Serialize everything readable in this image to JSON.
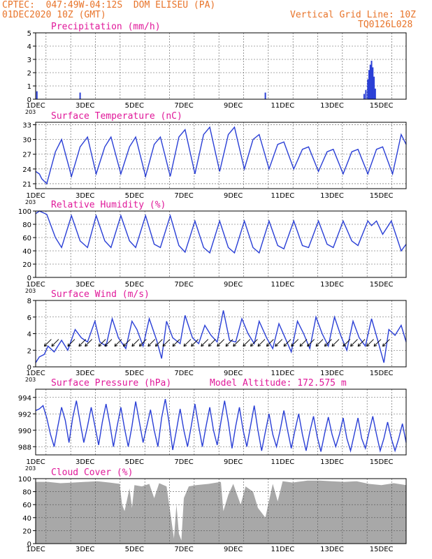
{
  "header": {
    "line1_left": "CPTEC:  047:49W-04:12S  DOM ELISEU (PA)",
    "line2_left": "01DEC2020 10Z (GMT)",
    "line1_right": "Vertical Grid Line: 10Z",
    "line2_right": "TQ0126L028"
  },
  "colors": {
    "header": "#e8742a",
    "panel_title": "#e0199a",
    "series": "#2a3fd6",
    "cloud_fill": "#a8a8a8",
    "wind_arrow": "#000000",
    "grid": "#555555"
  },
  "chart_data": [
    {
      "type": "bar",
      "title": "Precipitation (mm/h)",
      "ylim": [
        0,
        5
      ],
      "yticks": [
        "0",
        "1",
        "2",
        "3",
        "4",
        "5"
      ],
      "xticks": [
        "1DEC",
        "3DEC",
        "5DEC",
        "7DEC",
        "9DEC",
        "11DEC",
        "13DEC",
        "15DEC"
      ],
      "grid": "dashed vertical at 10Z each day, dashed horizontal",
      "x_units": "day of Dec 2020",
      "x": [
        1.05,
        2.8,
        10.3,
        14.3,
        14.37,
        14.45,
        14.5,
        14.55,
        14.6,
        14.65,
        14.7,
        14.75
      ],
      "values": [
        0.6,
        0.5,
        0.5,
        0.4,
        0.7,
        1.5,
        2.2,
        2.6,
        2.9,
        2.4,
        1.7,
        0.8
      ]
    },
    {
      "type": "line",
      "title": "Surface Temperature (nC)",
      "ylim": [
        20,
        33.5
      ],
      "yticks": [
        "21",
        "24",
        "27",
        "30",
        "33"
      ],
      "xticks": [
        "1DEC",
        "3DEC",
        "5DEC",
        "7DEC",
        "9DEC",
        "11DEC",
        "13DEC",
        "15DEC"
      ],
      "x_units": "day of Dec 2020",
      "x": [
        1.0,
        1.15,
        1.25,
        1.45,
        1.8,
        2.05,
        2.45,
        2.8,
        3.1,
        3.45,
        3.8,
        4.05,
        4.45,
        4.8,
        5.05,
        5.45,
        5.8,
        6.05,
        6.45,
        6.8,
        7.05,
        7.45,
        7.8,
        8.05,
        8.45,
        8.8,
        9.05,
        9.45,
        9.8,
        10.05,
        10.45,
        10.8,
        11.05,
        11.45,
        11.8,
        12.05,
        12.45,
        12.8,
        13.05,
        13.45,
        13.8,
        14.05,
        14.45,
        14.8,
        15.05,
        15.45,
        15.8,
        16.0
      ],
      "series": [
        {
          "values": [
            23.5,
            23.0,
            22.0,
            21.0,
            27.5,
            30.0,
            22.5,
            28.5,
            30.5,
            23.0,
            28.5,
            30.5,
            23.0,
            28.5,
            30.5,
            22.5,
            29.0,
            30.5,
            22.5,
            30.5,
            32.0,
            23.0,
            31.0,
            32.5,
            23.5,
            31.0,
            32.5,
            24.0,
            30.0,
            31.0,
            24.0,
            29.0,
            29.5,
            24.0,
            28.0,
            28.5,
            23.5,
            27.5,
            28.0,
            23.0,
            27.5,
            28.0,
            23.0,
            28.0,
            28.5,
            23.0,
            31.0,
            29.0
          ]
        }
      ]
    },
    {
      "type": "line",
      "title": "Relative Humidity (%)",
      "ylim": [
        0,
        100
      ],
      "yticks": [
        "0",
        "20",
        "40",
        "60",
        "80",
        "100"
      ],
      "xticks": [
        "1DEC",
        "3DEC",
        "5DEC",
        "7DEC",
        "9DEC",
        "11DEC",
        "13DEC",
        "15DEC"
      ],
      "x_units": "day of Dec 2020",
      "x": [
        1.0,
        1.15,
        1.45,
        1.8,
        2.05,
        2.45,
        2.8,
        3.1,
        3.45,
        3.8,
        4.05,
        4.45,
        4.8,
        5.05,
        5.45,
        5.8,
        6.05,
        6.45,
        6.8,
        7.05,
        7.45,
        7.8,
        8.05,
        8.45,
        8.8,
        9.05,
        9.45,
        9.8,
        10.05,
        10.45,
        10.8,
        11.05,
        11.45,
        11.8,
        12.05,
        12.45,
        12.8,
        13.05,
        13.45,
        13.8,
        14.05,
        14.45,
        14.6,
        14.8,
        15.05,
        15.4,
        15.8,
        16.0
      ],
      "series": [
        {
          "values": [
            96,
            100,
            95,
            60,
            45,
            93,
            55,
            45,
            93,
            55,
            45,
            93,
            55,
            45,
            93,
            50,
            45,
            93,
            48,
            38,
            85,
            45,
            37,
            85,
            45,
            37,
            85,
            45,
            37,
            85,
            48,
            43,
            85,
            48,
            45,
            85,
            50,
            45,
            85,
            55,
            48,
            85,
            78,
            85,
            65,
            85,
            40,
            50
          ]
        }
      ]
    },
    {
      "type": "line",
      "title": "Surface Wind (m/s)",
      "ylim": [
        0,
        8
      ],
      "yticks": [
        "0",
        "2",
        "4",
        "6",
        "8"
      ],
      "xticks": [
        "1DEC",
        "3DEC",
        "5DEC",
        "7DEC",
        "9DEC",
        "11DEC",
        "13DEC",
        "15DEC"
      ],
      "x_units": "day of Dec 2020",
      "wind_arrows": "black direction arrows along the curve",
      "x": [
        1.0,
        1.15,
        1.35,
        1.5,
        1.75,
        2.05,
        2.3,
        2.6,
        2.85,
        3.1,
        3.4,
        3.6,
        3.85,
        4.1,
        4.35,
        4.65,
        4.9,
        5.1,
        5.35,
        5.6,
        5.9,
        6.1,
        6.3,
        6.55,
        6.85,
        7.05,
        7.35,
        7.6,
        7.85,
        8.1,
        8.35,
        8.6,
        8.85,
        9.1,
        9.35,
        9.6,
        9.85,
        10.05,
        10.35,
        10.6,
        10.85,
        11.1,
        11.35,
        11.6,
        11.85,
        12.1,
        12.35,
        12.6,
        12.85,
        13.1,
        13.35,
        13.6,
        13.85,
        14.1,
        14.35,
        14.6,
        14.85,
        15.1,
        15.3,
        15.55,
        15.8,
        16.0
      ],
      "series": [
        {
          "values": [
            0.5,
            1.2,
            1.5,
            2.5,
            1.8,
            3.2,
            2.0,
            4.5,
            3.5,
            3.0,
            5.5,
            3.0,
            2.5,
            5.8,
            3.5,
            2.2,
            5.5,
            4.5,
            2.5,
            5.8,
            3.2,
            1.0,
            5.5,
            3.5,
            2.8,
            6.2,
            3.5,
            2.8,
            5.0,
            3.8,
            3.0,
            6.8,
            3.2,
            3.0,
            5.8,
            4.0,
            2.8,
            5.5,
            3.5,
            2.2,
            5.2,
            3.5,
            1.8,
            5.5,
            4.0,
            2.2,
            6.0,
            4.0,
            2.5,
            6.0,
            3.8,
            2.0,
            5.5,
            3.5,
            2.5,
            5.8,
            3.2,
            0.5,
            4.5,
            3.8,
            5.0,
            3.0
          ]
        }
      ]
    },
    {
      "type": "line",
      "title": "Surface Pressure (hPa)",
      "annotation": "Model Altitude: 172.575 m",
      "ylim": [
        987,
        995
      ],
      "yticks": [
        "988",
        "990",
        "992",
        "994"
      ],
      "xticks": [
        "1DEC",
        "3DEC",
        "5DEC",
        "7DEC",
        "9DEC",
        "11DEC",
        "13DEC",
        "15DEC"
      ],
      "x_units": "day of Dec 2020",
      "x": [
        1.0,
        1.15,
        1.3,
        1.45,
        1.6,
        1.75,
        1.9,
        2.05,
        2.2,
        2.35,
        2.5,
        2.65,
        2.8,
        2.95,
        3.1,
        3.25,
        3.4,
        3.55,
        3.7,
        3.85,
        4.0,
        4.15,
        4.3,
        4.45,
        4.6,
        4.75,
        4.9,
        5.05,
        5.2,
        5.35,
        5.5,
        5.65,
        5.8,
        5.95,
        6.1,
        6.25,
        6.4,
        6.55,
        6.7,
        6.85,
        7.0,
        7.15,
        7.3,
        7.45,
        7.6,
        7.75,
        7.9,
        8.05,
        8.2,
        8.35,
        8.5,
        8.65,
        8.8,
        8.95,
        9.1,
        9.25,
        9.4,
        9.55,
        9.7,
        9.85,
        10.0,
        10.15,
        10.3,
        10.45,
        10.6,
        10.75,
        10.9,
        11.05,
        11.2,
        11.35,
        11.5,
        11.65,
        11.8,
        11.95,
        12.1,
        12.25,
        12.4,
        12.55,
        12.7,
        12.85,
        13.0,
        13.15,
        13.3,
        13.45,
        13.6,
        13.75,
        13.9,
        14.05,
        14.2,
        14.35,
        14.5,
        14.65,
        14.8,
        14.95,
        15.1,
        15.25,
        15.4,
        15.55,
        15.7,
        15.85,
        16.0
      ],
      "series": [
        {
          "values": [
            992.4,
            992.6,
            993.0,
            991.5,
            989.5,
            988.0,
            990.5,
            992.8,
            991.2,
            988.5,
            991.5,
            993.6,
            991.0,
            988.5,
            990.5,
            992.8,
            990.5,
            988.2,
            991.0,
            993.2,
            990.8,
            988.0,
            990.5,
            992.8,
            990.2,
            988.0,
            990.5,
            993.5,
            991.0,
            988.5,
            990.5,
            992.5,
            990.0,
            988.0,
            991.5,
            993.8,
            991.0,
            987.6,
            990.0,
            992.6,
            990.0,
            988.0,
            990.5,
            993.2,
            990.5,
            988.0,
            990.5,
            992.8,
            990.0,
            988.2,
            991.0,
            993.6,
            991.0,
            987.8,
            990.5,
            992.8,
            990.0,
            988.0,
            990.5,
            993.0,
            990.0,
            987.5,
            989.8,
            992.0,
            989.5,
            988.0,
            990.0,
            992.4,
            990.0,
            987.8,
            990.0,
            992.0,
            989.5,
            987.5,
            989.8,
            991.7,
            989.2,
            987.4,
            989.6,
            991.6,
            989.5,
            988.0,
            989.5,
            991.5,
            989.0,
            987.5,
            989.5,
            991.5,
            989.0,
            987.8,
            989.8,
            991.7,
            989.5,
            987.5,
            989.0,
            991.0,
            989.0,
            987.5,
            989.0,
            990.8,
            988.5
          ]
        }
      ]
    },
    {
      "type": "area",
      "title": "Cloud Cover (%)",
      "ylim": [
        0,
        100
      ],
      "yticks": [
        "0",
        "20",
        "40",
        "60",
        "80",
        "100"
      ],
      "xticks": [
        "1DEC",
        "3DEC",
        "5DEC",
        "7DEC",
        "9DEC",
        "11DEC",
        "13DEC",
        "15DEC"
      ],
      "x_units": "day of Dec 2020",
      "x": [
        1.0,
        1.5,
        2.0,
        2.5,
        3.0,
        3.5,
        4.0,
        4.4,
        4.5,
        4.6,
        4.8,
        4.9,
        5.0,
        5.3,
        5.6,
        5.8,
        6.0,
        6.3,
        6.5,
        6.6,
        6.7,
        6.8,
        6.9,
        7.0,
        7.2,
        7.5,
        8.0,
        8.5,
        8.6,
        8.8,
        9.0,
        9.3,
        9.5,
        9.8,
        10.0,
        10.3,
        10.6,
        10.8,
        11.0,
        11.2,
        11.4,
        11.6,
        11.8,
        12.0,
        12.5,
        13.0,
        13.5,
        14.0,
        14.5,
        15.0,
        15.5,
        16.0
      ],
      "values": [
        95,
        95,
        93,
        94,
        95,
        96,
        94,
        92,
        60,
        50,
        85,
        55,
        90,
        88,
        92,
        70,
        93,
        88,
        35,
        8,
        60,
        15,
        5,
        70,
        88,
        90,
        92,
        95,
        50,
        75,
        92,
        60,
        88,
        80,
        55,
        40,
        92,
        65,
        96,
        95,
        94,
        95,
        96,
        97,
        97,
        96,
        95,
        96,
        92,
        90,
        93,
        90
      ]
    }
  ],
  "decor": {
    "truncated_tick_marks": [
      "203",
      "203",
      "203",
      "203",
      "203"
    ]
  }
}
